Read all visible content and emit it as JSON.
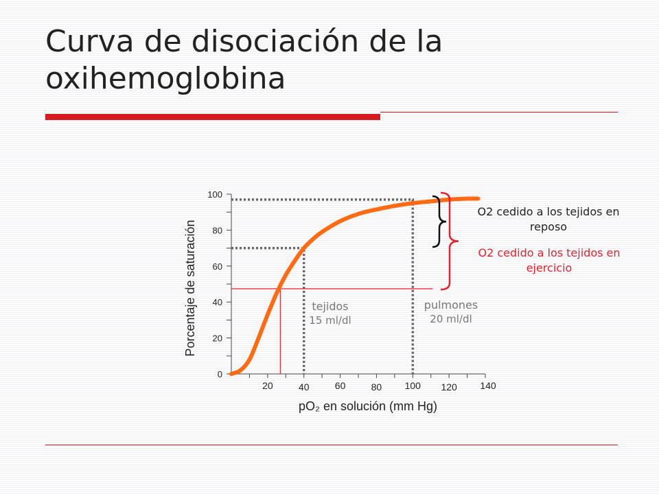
{
  "slide": {
    "title": "Curva de disociación de la oxihemoglobina"
  },
  "colors": {
    "accent_red": "#d71920",
    "curve": "#ff6a13",
    "dotted": "#666666",
    "annotation_red": "#e8202a",
    "label_gray": "#777777"
  },
  "chart_data": {
    "type": "line",
    "xlabel": "pO₂ en solución (mm Hg)",
    "ylabel": "Porcentaje de saturación",
    "xlim": [
      0,
      140
    ],
    "ylim": [
      0,
      100
    ],
    "x_ticks": [
      20,
      40,
      60,
      80,
      100,
      120,
      140
    ],
    "y_ticks": [
      0,
      20,
      40,
      60,
      80,
      100
    ],
    "grid": false,
    "series": [
      {
        "x": [
          0,
          5,
          10,
          15,
          20,
          25,
          30,
          35,
          40,
          45,
          50,
          60,
          70,
          80,
          90,
          100,
          110,
          120,
          130,
          136
        ],
        "y": [
          0,
          2,
          8,
          20,
          33,
          45,
          55,
          63,
          70,
          75,
          79,
          85,
          89,
          91.5,
          93.5,
          95,
          96,
          97,
          97.5,
          97.5
        ]
      }
    ],
    "reference_lines": [
      {
        "style": "dotted",
        "x": 40,
        "y": 70
      },
      {
        "style": "dotted",
        "x": 100,
        "y": 97
      },
      {
        "style": "solid-red",
        "x": 27,
        "y": 47
      }
    ],
    "annotations": {
      "tejidos": {
        "label": "tejidos",
        "value": "15 ml/dl"
      },
      "pulmones": {
        "label": "pulmones",
        "value": "20 ml/dl"
      },
      "reposo": "O2 cedido a los tejidos en reposo",
      "ejercicio": "O2 cedido a los tejidos en ejercicio"
    }
  }
}
